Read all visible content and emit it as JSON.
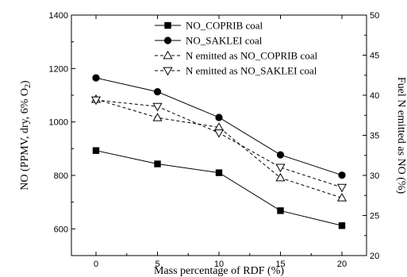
{
  "chart_data": {
    "type": "line",
    "x": [
      0,
      5,
      10,
      15,
      20
    ],
    "xlabel": "Mass percentage of RDF (%)",
    "ylabel_left": "NO (PPMV, dry, 6% O",
    "ylabel_left_sub": "2",
    "ylabel_left_end": ")",
    "ylabel_right": "Fuel N emitted as NO (%)",
    "xlim": [
      -2,
      22
    ],
    "ylim_left": [
      500,
      1400
    ],
    "ylim_right": [
      20,
      50
    ],
    "x_ticks": [
      0,
      5,
      10,
      15,
      20
    ],
    "y_left_ticks": [
      600,
      800,
      1000,
      1200,
      1400
    ],
    "y_right_ticks": [
      20,
      25,
      30,
      35,
      40,
      45,
      50
    ],
    "legend_position": "top-right",
    "grid": false,
    "series": [
      {
        "name": "NO_COPRIB coal",
        "axis": "left",
        "style": "solid",
        "marker": "square-filled",
        "values": [
          893,
          843,
          810,
          668,
          612
        ]
      },
      {
        "name": "NO_SAKLEI coal",
        "axis": "left",
        "style": "solid",
        "marker": "circle-filled",
        "values": [
          1165,
          1113,
          1017,
          877,
          801
        ]
      },
      {
        "name": "N emitted as NO_COPRIB coal",
        "axis": "right",
        "style": "dashed",
        "marker": "triangle-up-open",
        "values": [
          39.5,
          37.2,
          36.0,
          29.7,
          27.2
        ]
      },
      {
        "name": "N emitted as NO_SAKLEI coal",
        "axis": "right",
        "style": "dashed",
        "marker": "triangle-down-open",
        "values": [
          39.4,
          38.6,
          35.3,
          31.0,
          28.5
        ]
      }
    ]
  }
}
